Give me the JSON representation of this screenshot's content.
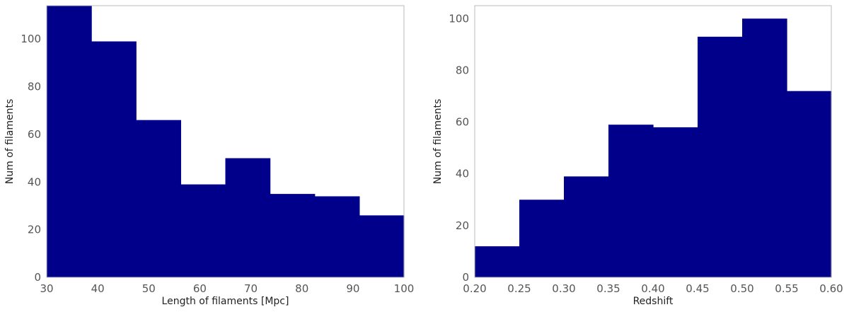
{
  "chart_data": [
    {
      "type": "bar",
      "histogram": true,
      "bin_edges": [
        30,
        38.75,
        47.5,
        56.25,
        65,
        73.75,
        82.5,
        91.25,
        100
      ],
      "values": [
        114,
        99,
        66,
        39,
        50,
        35,
        34,
        26
      ],
      "xlabel": "Length of filaments [Mpc]",
      "ylabel": "Num of filaments",
      "xlim": [
        30,
        100
      ],
      "ylim": [
        0,
        114
      ],
      "xticks": [
        30,
        40,
        50,
        60,
        70,
        80,
        90,
        100
      ],
      "xtick_labels": [
        "30",
        "40",
        "50",
        "60",
        "70",
        "80",
        "90",
        "100"
      ],
      "yticks": [
        0,
        20,
        40,
        60,
        80,
        100
      ],
      "ytick_labels": [
        "0",
        "20",
        "40",
        "60",
        "80",
        "100"
      ],
      "grid": false,
      "color": "#00008b"
    },
    {
      "type": "bar",
      "histogram": true,
      "bin_edges": [
        0.2,
        0.25,
        0.3,
        0.35,
        0.4,
        0.45,
        0.5,
        0.55,
        0.6
      ],
      "values": [
        12,
        30,
        39,
        59,
        58,
        93,
        100,
        72
      ],
      "xlabel": "Redshift",
      "ylabel": "Num of filaments",
      "xlim": [
        0.2,
        0.6
      ],
      "ylim": [
        0,
        105
      ],
      "xticks": [
        0.2,
        0.25,
        0.3,
        0.35,
        0.4,
        0.45,
        0.5,
        0.55,
        0.6
      ],
      "xtick_labels": [
        "0.20",
        "0.25",
        "0.30",
        "0.35",
        "0.40",
        "0.45",
        "0.50",
        "0.55",
        "0.60"
      ],
      "yticks": [
        0,
        20,
        40,
        60,
        80,
        100
      ],
      "ytick_labels": [
        "0",
        "20",
        "40",
        "60",
        "80",
        "100"
      ],
      "grid": false,
      "color": "#00008b"
    }
  ]
}
